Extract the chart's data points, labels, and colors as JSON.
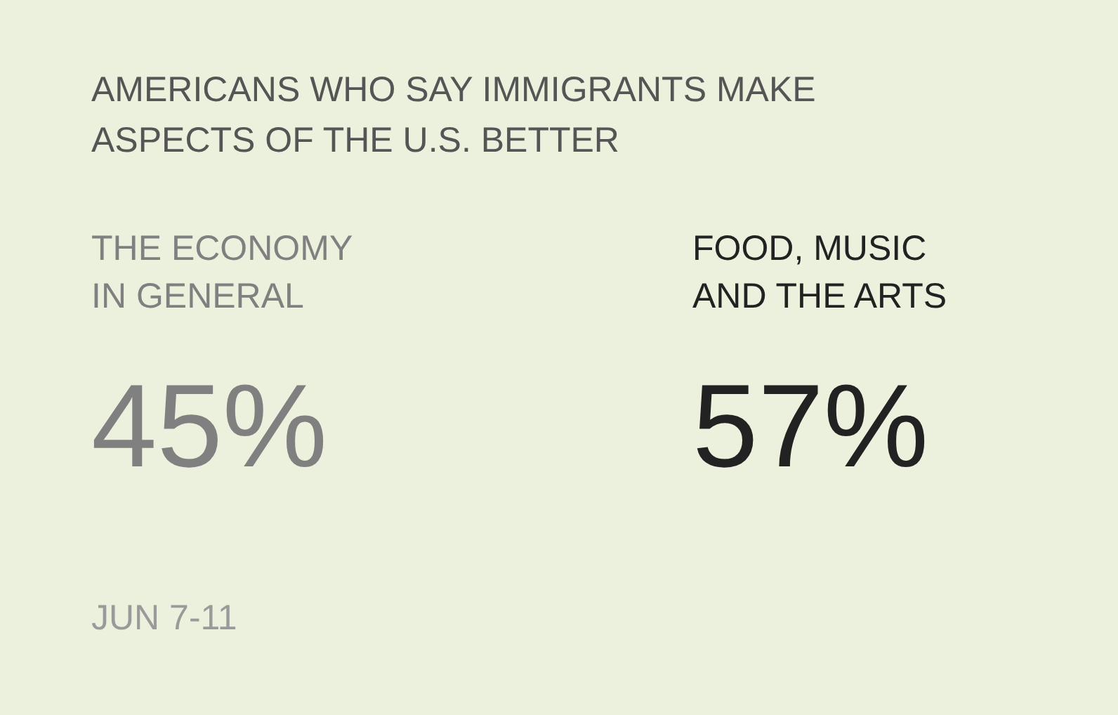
{
  "chart_data": {
    "type": "other",
    "title": "AMERICANS WHO SAY IMMIGRANTS MAKE\nASPECTS OF THE U.S. BETTER",
    "categories": [
      "THE ECONOMY\nIN GENERAL",
      "FOOD, MUSIC\nAND THE ARTS"
    ],
    "values": [
      45,
      57
    ],
    "value_labels": [
      "45%",
      "57%"
    ],
    "colors": [
      "#808080",
      "#222222"
    ],
    "annotations": [
      "JUN 7-11"
    ]
  }
}
